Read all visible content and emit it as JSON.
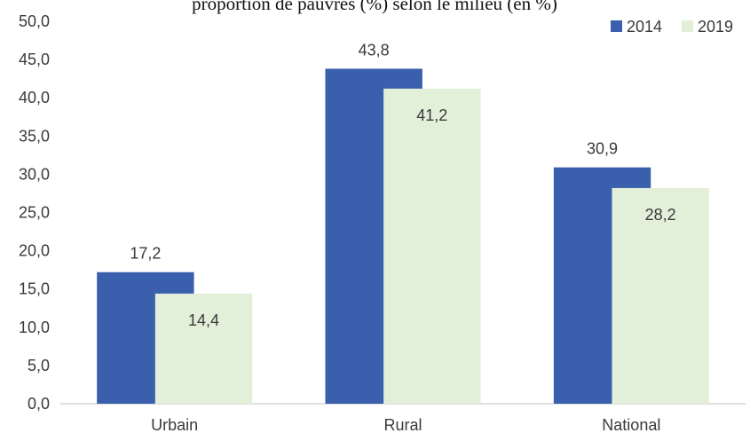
{
  "chart_data": {
    "type": "bar",
    "title_fragment": "proportion de pauvres (%) selon le milieu (en %)",
    "categories": [
      "Urbain",
      "Rural",
      "National"
    ],
    "series": [
      {
        "name": "2014",
        "values": [
          17.2,
          43.8,
          30.9
        ],
        "labels": [
          "17,2",
          "43,8",
          "30,9"
        ]
      },
      {
        "name": "2019",
        "values": [
          14.4,
          41.2,
          28.2
        ],
        "labels": [
          "14,4",
          "41,2",
          "28,2"
        ]
      }
    ],
    "ylim": [
      0,
      50
    ],
    "ytick_step": 5,
    "ytick_labels": [
      "0,0",
      "5,0",
      "10,0",
      "15,0",
      "20,0",
      "25,0",
      "30,0",
      "35,0",
      "40,0",
      "45,0",
      "50,0"
    ],
    "grid": false,
    "legend": "top-right",
    "colors": {
      "2014": "#3a5fad",
      "2019": "#e2efd9"
    }
  }
}
